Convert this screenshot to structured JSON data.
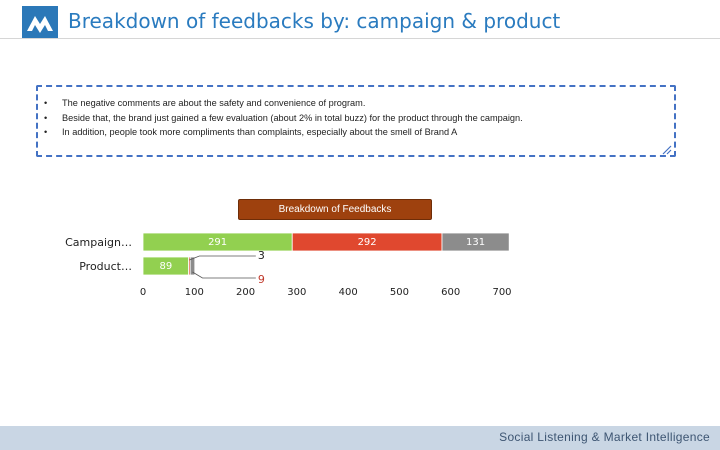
{
  "header": {
    "title": "Breakdown of feedbacks by: campaign & product",
    "logo_color": "#2b78b8"
  },
  "notes": {
    "items": [
      "The negative comments are about the safety and convenience of program.",
      "Beside that, the brand just gained a few evaluation (about 2% in total buzz) for the product through the campaign.",
      "In addition, people took more compliments than complaints, especially about the smell of Brand A"
    ]
  },
  "chart_data": {
    "type": "bar",
    "orientation": "horizontal",
    "stacked": true,
    "title": "Breakdown of Feedbacks",
    "categories": [
      "Campaign…",
      "Product…"
    ],
    "series": [
      {
        "color": "#92d050",
        "values": [
          291,
          89
        ]
      },
      {
        "color": "#e0482f",
        "values": [
          292,
          3
        ]
      },
      {
        "color": "#8c8c8c",
        "values": [
          131,
          9
        ]
      }
    ],
    "xlim": [
      0,
      700
    ],
    "xticks": [
      0,
      100,
      200,
      300,
      400,
      500,
      600,
      700
    ],
    "grid": false,
    "legend": "none"
  },
  "footer": {
    "text": "Social Listening & Market Intelligence"
  }
}
